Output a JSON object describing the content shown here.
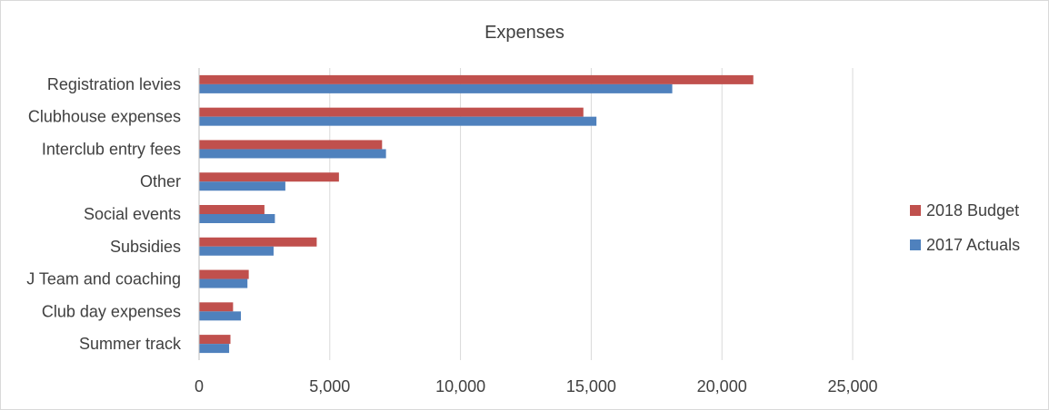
{
  "chart_data": {
    "type": "bar",
    "orientation": "horizontal",
    "title": "Expenses",
    "categories": [
      "Registration levies",
      "Clubhouse expenses",
      "Interclub entry fees",
      "Other",
      "Social events",
      "Subsidies",
      "J Team and coaching",
      "Club day expenses",
      "Summer track"
    ],
    "series": [
      {
        "name": "2018 Budget",
        "color": "#c0504d",
        "values": [
          21200,
          14700,
          7000,
          5350,
          2500,
          4500,
          1900,
          1300,
          1200
        ]
      },
      {
        "name": "2017 Actuals",
        "color": "#4f81bd",
        "values": [
          18100,
          15200,
          7150,
          3300,
          2900,
          2850,
          1850,
          1600,
          1150
        ]
      }
    ],
    "xlim": [
      0,
      25000
    ],
    "xticks": [
      0,
      5000,
      10000,
      15000,
      20000,
      25000
    ],
    "xtick_labels": [
      "0",
      "5,000",
      "10,000",
      "15,000",
      "20,000",
      "25,000"
    ],
    "grid": true,
    "legend_position": "right"
  }
}
